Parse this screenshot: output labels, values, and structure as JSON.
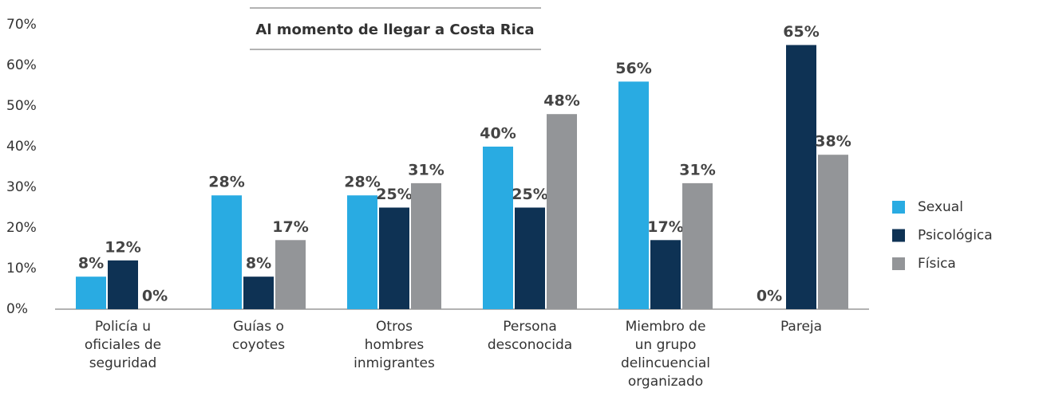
{
  "chart_data": {
    "type": "bar",
    "title": "Al momento de llegar a Costa Rica",
    "categories": [
      "Policía u\noficiales de\nseguridad",
      "Guías o\ncoyotes",
      "Otros\nhombres\ninmigrantes",
      "Persona\ndesconocida",
      "Miembro de\nun grupo\ndelincuencial\norganizado",
      "Pareja"
    ],
    "series": [
      {
        "name": "Sexual",
        "color": "#29abe2",
        "values": [
          8,
          28,
          28,
          40,
          56,
          0
        ],
        "value_labels": [
          "8%",
          "28%",
          "28%",
          "40%",
          "56%",
          "0%"
        ]
      },
      {
        "name": "Psicológica",
        "color": "#0e3254",
        "values": [
          12,
          8,
          25,
          25,
          17,
          65
        ],
        "value_labels": [
          "12%",
          "8%",
          "25%",
          "25%",
          "17%",
          "65%"
        ]
      },
      {
        "name": "Física",
        "color": "#939598",
        "values": [
          0,
          17,
          31,
          48,
          31,
          38
        ],
        "value_labels": [
          "0%",
          "17%",
          "31%",
          "48%",
          "31%",
          "38%"
        ]
      }
    ],
    "ylim": [
      0,
      70
    ],
    "yticks": [
      {
        "value": 0,
        "label": "0%"
      },
      {
        "value": 10,
        "label": "10%"
      },
      {
        "value": 20,
        "label": "20%"
      },
      {
        "value": 30,
        "label": "30%"
      },
      {
        "value": 40,
        "label": "40%"
      },
      {
        "value": 50,
        "label": "50%"
      },
      {
        "value": 60,
        "label": "60%"
      },
      {
        "value": 70,
        "label": "70%"
      }
    ],
    "grid": false,
    "legend": "right"
  }
}
